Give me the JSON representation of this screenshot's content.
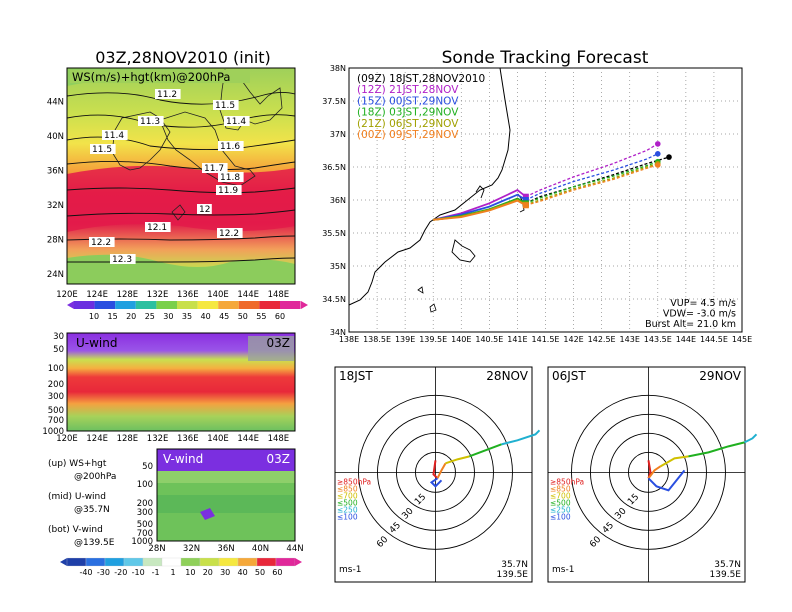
{
  "main_title": "03Z,28NOV2010 (init)",
  "right_title": "Sonde Tracking Forecast",
  "chart_data": [
    {
      "type": "heatmap",
      "panel": "upper map",
      "title": "WS(m/s)+hgt(km)@200hPa",
      "x_ticks": [
        "120E",
        "124E",
        "128E",
        "132E",
        "136E",
        "140E",
        "144E",
        "148E"
      ],
      "y_ticks": [
        "24N",
        "28N",
        "32N",
        "36N",
        "40N",
        "44N"
      ],
      "height_labels": [
        "11.2",
        "11.3",
        "11.4",
        "11.5",
        "11.4",
        "11.5",
        "11.6",
        "11.7",
        "11.8",
        "11.9",
        "12",
        "12.1",
        "12.2",
        "12.2",
        "12.3"
      ],
      "colorbar_ticks": [
        "10",
        "15",
        "20",
        "25",
        "30",
        "35",
        "40",
        "45",
        "50",
        "55",
        "60"
      ]
    },
    {
      "type": "heatmap",
      "panel": "middle",
      "title": "U-wind",
      "time": "03Z",
      "x_ticks": [
        "120E",
        "124E",
        "128E",
        "132E",
        "136E",
        "140E",
        "144E",
        "148E"
      ],
      "y_ticks": [
        "30",
        "50",
        "100",
        "200",
        "300",
        "500",
        "700",
        "1000"
      ]
    },
    {
      "type": "heatmap",
      "panel": "bottom",
      "title": "V-wind",
      "time": "03Z",
      "x_ticks": [
        "28N",
        "32N",
        "36N",
        "40N",
        "44N"
      ],
      "y_ticks": [
        "50",
        "100",
        "200",
        "300",
        "500",
        "700",
        "1000"
      ],
      "colorbar_ticks": [
        "-40",
        "-30",
        "-20",
        "-10",
        "-1",
        "1",
        "10",
        "20",
        "30",
        "40",
        "50",
        "60"
      ]
    },
    {
      "type": "line",
      "panel": "track",
      "xlim": [
        138,
        145
      ],
      "ylim": [
        34,
        38
      ],
      "x_ticks": [
        "138E",
        "138.5E",
        "139E",
        "139.5E",
        "140E",
        "140.5E",
        "141E",
        "141.5E",
        "142E",
        "142.5E",
        "143E",
        "143.5E",
        "144E",
        "144.5E",
        "145E"
      ],
      "y_ticks": [
        "34N",
        "34.5N",
        "35N",
        "35.5N",
        "36N",
        "36.5N",
        "37N",
        "37.5N",
        "38N"
      ],
      "series": [
        {
          "name": "(09Z) 18JST,28NOV2010",
          "color": "#000000",
          "x": [
            139.5,
            140.0,
            140.5,
            141.0,
            141.15,
            141.4,
            142.0,
            142.7,
            143.3,
            143.7
          ],
          "y": [
            35.7,
            35.75,
            35.85,
            36.02,
            35.95,
            36.05,
            36.2,
            36.38,
            36.55,
            36.65
          ]
        },
        {
          "name": "(12Z) 21JST,28NOV",
          "color": "#b020c8",
          "x": [
            139.5,
            140.0,
            140.5,
            141.0,
            141.15,
            141.4,
            142.0,
            142.7,
            143.3,
            143.5
          ],
          "y": [
            35.7,
            35.8,
            35.95,
            36.15,
            36.05,
            36.15,
            36.35,
            36.55,
            36.75,
            36.85
          ]
        },
        {
          "name": "(15Z) 00JST,29NOV",
          "color": "#2a4fe0",
          "x": [
            139.5,
            140.0,
            140.5,
            141.0,
            141.15,
            141.4,
            142.0,
            142.7,
            143.3,
            143.5
          ],
          "y": [
            35.7,
            35.78,
            35.9,
            36.08,
            36.0,
            36.1,
            36.28,
            36.45,
            36.62,
            36.7
          ]
        },
        {
          "name": "(18Z) 03JST,29NOV",
          "color": "#20b020",
          "x": [
            139.5,
            140.0,
            140.5,
            141.0,
            141.15,
            141.4,
            142.0,
            142.7,
            143.3,
            143.5
          ],
          "y": [
            35.7,
            35.76,
            35.86,
            36.02,
            35.95,
            36.03,
            36.2,
            36.36,
            36.52,
            36.58
          ]
        },
        {
          "name": "(21Z) 06JST,29NOV",
          "color": "#a0a000",
          "x": [
            139.5,
            140.0,
            140.5,
            141.0,
            141.15,
            141.4,
            142.0,
            142.7,
            143.3,
            143.5
          ],
          "y": [
            35.7,
            35.75,
            35.85,
            36.0,
            35.93,
            36.0,
            36.17,
            36.33,
            36.5,
            36.55
          ]
        },
        {
          "name": "(00Z) 09JST,29NOV",
          "color": "#f08020",
          "x": [
            139.5,
            140.0,
            140.5,
            141.0,
            141.15,
            141.4,
            142.0,
            142.7,
            143.3,
            143.5
          ],
          "y": [
            35.7,
            35.74,
            35.84,
            35.99,
            35.92,
            35.98,
            36.15,
            36.31,
            36.48,
            36.53
          ]
        }
      ],
      "annotations": [
        "VUP= 4.5 m/s",
        "VDW= -3.0 m/s",
        "Burst Alt= 21.0 km"
      ]
    }
  ],
  "left_legend": [
    "(up) WS+hgt",
    "@200hPa",
    "(mid) U-wind",
    "@35.7N",
    "(bot) V-wind",
    "@139.5E"
  ],
  "polar_left": {
    "time": "18JST",
    "date": "28NOV"
  },
  "polar_right": {
    "time": "06JST",
    "date": "29NOV"
  },
  "polar_rings": [
    "15",
    "30",
    "45",
    "60"
  ],
  "polar_levels": [
    {
      "label": "≥850hPa",
      "color": "#e02020"
    },
    {
      "label": "≤850",
      "color": "#f08020"
    },
    {
      "label": "≤700",
      "color": "#d0c000"
    },
    {
      "label": "≤500",
      "color": "#20b020"
    },
    {
      "label": "≤250",
      "color": "#20b0d0"
    },
    {
      "label": "≤100",
      "color": "#2a4fe0"
    }
  ],
  "polar_location": [
    "35.7N",
    "139.5E"
  ],
  "polar_unit": "ms-1"
}
